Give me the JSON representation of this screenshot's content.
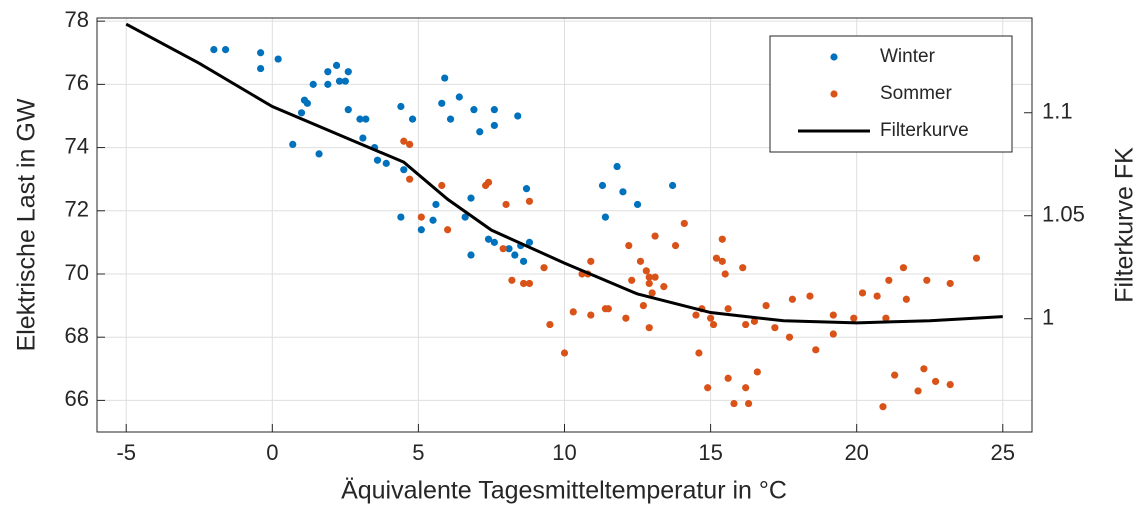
{
  "chart_data": {
    "type": "scatter",
    "xlabel": "Äquivalente Tagesmitteltemperatur in °C",
    "ylabel": "Elektrische Last in GW",
    "y2label": "Filterkurve FK",
    "xlim": [
      -6,
      26
    ],
    "xticks": [
      -5,
      0,
      5,
      10,
      15,
      20,
      25
    ],
    "ylim": [
      65,
      78.1
    ],
    "yticks": [
      66,
      68,
      70,
      72,
      74,
      76,
      78
    ],
    "y2lim": [
      0.945,
      1.146
    ],
    "y2ticks": [
      1,
      1.05,
      1.1
    ],
    "grid": true,
    "legend": "upper right",
    "series": [
      {
        "name": "Winter",
        "color": "#0072BD",
        "x": [
          -2,
          -1.6,
          -0.4,
          0.2,
          -0.4,
          1.9,
          2.2,
          2.6,
          2.5,
          2.3,
          1.9,
          1.4,
          1.2,
          1.1,
          2.6,
          1.0,
          3.0,
          3.2,
          0.7,
          3.1,
          1.6,
          3.5,
          3.6,
          3.9,
          4.4,
          4.8,
          5.9,
          5.8,
          6.4,
          6.1,
          6.9,
          7.6,
          7.6,
          7.1,
          8.4,
          4.5,
          4.4,
          5.1,
          5.5,
          5.6,
          6.6,
          6.8,
          7.4,
          7.6,
          6.8,
          8.1,
          8.3,
          8.5,
          8.6,
          8.7,
          8.8,
          11.3,
          11.4,
          11.8,
          12.0,
          12.5,
          13.7
        ],
        "values": [
          77.1,
          77.1,
          77.0,
          76.8,
          76.5,
          76.4,
          76.6,
          76.4,
          76.1,
          76.1,
          76.0,
          76.0,
          75.4,
          75.5,
          75.2,
          75.1,
          74.9,
          74.9,
          74.1,
          74.3,
          73.8,
          74.0,
          73.6,
          73.5,
          75.3,
          74.9,
          76.2,
          75.4,
          75.6,
          74.9,
          75.2,
          75.2,
          74.7,
          74.5,
          75.0,
          73.3,
          71.8,
          71.4,
          71.7,
          72.2,
          71.8,
          72.4,
          71.1,
          71.0,
          70.6,
          70.8,
          70.6,
          70.9,
          70.4,
          72.7,
          71.0,
          72.8,
          71.8,
          73.4,
          72.6,
          72.2,
          72.8
        ]
      },
      {
        "name": "Sommer",
        "color": "#D95319",
        "x": [
          4.5,
          4.7,
          4.7,
          5.8,
          5.1,
          6.0,
          7.3,
          7.4,
          8.0,
          8.8,
          7.9,
          8.2,
          8.6,
          8.8,
          9.3,
          9.5,
          10.0,
          10.3,
          10.6,
          10.8,
          10.9,
          10.9,
          11.4,
          11.5,
          12.1,
          12.2,
          12.3,
          12.6,
          12.7,
          12.8,
          12.9,
          12.9,
          12.9,
          13.0,
          13.1,
          13.1,
          13.4,
          13.8,
          14.1,
          14.5,
          14.6,
          14.7,
          14.9,
          15.0,
          15.1,
          15.2,
          15.4,
          15.5,
          15.6,
          15.6,
          15.8,
          16.1,
          16.2,
          16.2,
          16.3,
          16.5,
          16.6,
          16.9,
          17.2,
          17.7,
          17.8,
          18.4,
          18.6,
          19.2,
          19.2,
          19.9,
          20.2,
          20.7,
          20.9,
          21.0,
          21.1,
          21.3,
          21.6,
          21.7,
          22.1,
          22.3,
          22.4,
          22.7,
          23.2,
          23.2,
          24.1,
          15.4
        ],
        "values": [
          74.2,
          74.1,
          73.0,
          72.8,
          71.8,
          71.4,
          72.8,
          72.9,
          72.2,
          72.3,
          70.8,
          69.8,
          69.7,
          69.7,
          70.2,
          68.4,
          67.5,
          68.8,
          70.0,
          70.0,
          70.4,
          68.7,
          68.9,
          68.9,
          68.6,
          70.9,
          69.8,
          70.4,
          69.0,
          70.1,
          69.9,
          69.7,
          68.3,
          69.4,
          69.9,
          71.2,
          69.6,
          70.9,
          71.6,
          68.7,
          67.5,
          68.9,
          66.4,
          68.6,
          68.4,
          70.5,
          71.1,
          70.0,
          68.9,
          66.7,
          65.9,
          70.2,
          68.4,
          66.4,
          65.9,
          68.5,
          66.9,
          69.0,
          68.3,
          68.0,
          69.2,
          69.3,
          67.6,
          68.1,
          68.7,
          68.6,
          69.4,
          69.3,
          65.8,
          68.6,
          69.8,
          66.8,
          70.2,
          69.2,
          66.3,
          67.0,
          69.8,
          66.6,
          69.7,
          66.5,
          70.5,
          70.4
        ]
      },
      {
        "name": "Filterkurve",
        "color": "#000000",
        "type": "line",
        "axis": "y2",
        "x": [
          -5,
          -2.5,
          0,
          2.5,
          4.5,
          6,
          7.5,
          10,
          12.5,
          15,
          17.5,
          20,
          22.5,
          25
        ],
        "values": [
          1.143,
          1.124,
          1.103,
          1.088,
          1.076,
          1.058,
          1.043,
          1.027,
          1.012,
          1.003,
          0.999,
          0.998,
          0.999,
          1.001
        ]
      }
    ]
  }
}
